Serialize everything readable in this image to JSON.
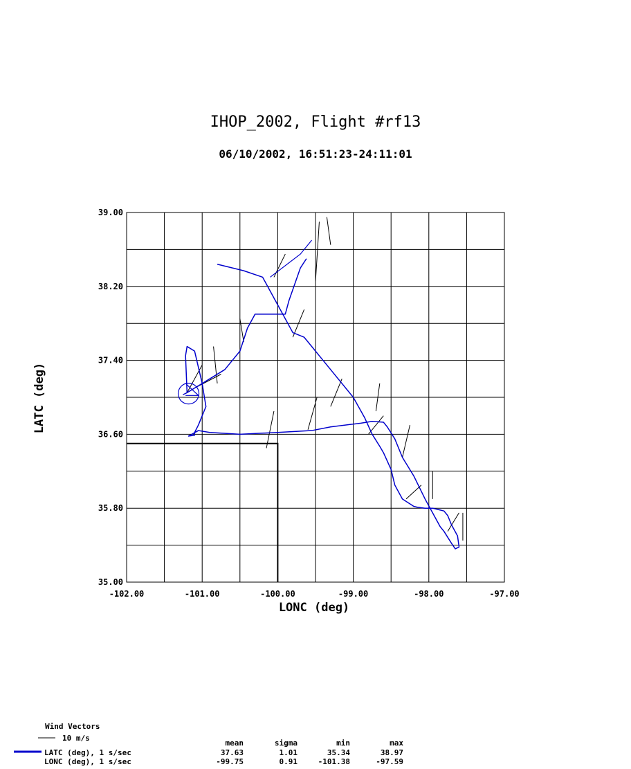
{
  "chart_data": {
    "type": "line",
    "title": "IHOP_2002, Flight #rf13",
    "subtitle": "06/10/2002, 16:51:23-24:11:01",
    "xlabel": "LONC (deg)",
    "ylabel": "LATC (deg)",
    "xlim": [
      -102.0,
      -97.0
    ],
    "ylim": [
      35.0,
      39.0
    ],
    "x_ticks": [
      "-102.00",
      "-101.00",
      "-100.00",
      "-99.00",
      "-98.00",
      "-97.00"
    ],
    "y_ticks": [
      "35.00",
      "35.80",
      "36.60",
      "37.40",
      "38.20",
      "39.00"
    ],
    "grid": true,
    "track_color": "#0000cc",
    "boundary_color": "#000000",
    "series": [
      {
        "name": "LATC (deg), 1 s/sec",
        "x": [
          -99.62,
          -99.7,
          -99.85,
          -99.9,
          -100.3,
          -100.4,
          -100.5,
          -100.7,
          -100.9,
          -101.0,
          -101.1,
          -101.2,
          -101.25,
          -101.2,
          -101.22,
          -101.2,
          -101.1,
          -101.0,
          -100.95,
          -101.0,
          -101.05,
          -101.1,
          -101.1,
          -101.18,
          -101.05,
          -100.9,
          -100.5,
          -100.0,
          -99.55,
          -99.3,
          -99.0,
          -98.9,
          -98.75,
          -98.6,
          -98.55,
          -98.45,
          -98.35,
          -98.2,
          -98.05,
          -97.95,
          -97.85,
          -97.8,
          -97.7,
          -97.65,
          -97.6,
          -97.62,
          -97.7,
          -97.75,
          -97.8,
          -97.95,
          -98.05,
          -98.15,
          -98.2,
          -98.35,
          -98.45,
          -98.5,
          -98.6,
          -98.65,
          -98.75,
          -98.85,
          -99.0,
          -99.2,
          -99.45,
          -99.65,
          -99.8,
          -100.0,
          -100.2,
          -100.45,
          -100.8
        ],
        "y": [
          38.5,
          38.4,
          38.05,
          37.9,
          37.9,
          37.75,
          37.5,
          37.3,
          37.2,
          37.15,
          37.1,
          37.05,
          37.03,
          37.05,
          37.45,
          37.55,
          37.5,
          37.15,
          36.9,
          36.8,
          36.7,
          36.62,
          36.59,
          36.58,
          36.64,
          36.62,
          36.6,
          36.62,
          36.64,
          36.68,
          36.71,
          36.72,
          36.74,
          36.73,
          36.68,
          36.55,
          36.35,
          36.15,
          35.9,
          35.75,
          35.6,
          35.55,
          35.42,
          35.36,
          35.38,
          35.5,
          35.62,
          35.72,
          35.77,
          35.8,
          35.8,
          35.81,
          35.82,
          35.9,
          36.05,
          36.22,
          36.4,
          36.47,
          36.6,
          36.78,
          37.0,
          37.2,
          37.45,
          37.65,
          37.7,
          38.0,
          38.3,
          38.37,
          38.44
        ]
      },
      {
        "name": "LONC (deg), 1 s/sec"
      }
    ],
    "legend": {
      "wind_title": "Wind Vectors",
      "wind_scale": "10 m/s",
      "headers": [
        "mean",
        "sigma",
        "min",
        "max"
      ],
      "rows": [
        {
          "label": "LATC (deg), 1 s/sec",
          "mean": "37.63",
          "sigma": "1.01",
          "min": "35.34",
          "max": "38.97"
        },
        {
          "label": "LONC (deg), 1 s/sec",
          "mean": "-99.75",
          "sigma": "0.91",
          "min": "-101.38",
          "max": "-97.59"
        }
      ]
    },
    "boundary": {
      "x": [
        -102.0,
        -100.0,
        -100.0
      ],
      "y": [
        36.5,
        36.5,
        35.0
      ]
    },
    "loops": [
      {
        "x": [
          -101.22,
          -101.05,
          -101.22
        ],
        "y": [
          37.02,
          37.02,
          37.15
        ]
      },
      {
        "x": [
          -100.1,
          -99.7,
          -99.55
        ],
        "y": [
          38.3,
          38.55,
          38.7
        ]
      }
    ],
    "wind_vectors": [
      {
        "x": -101.1,
        "y": 37.1,
        "dx": 0.35,
        "dy": 0.15
      },
      {
        "x": -100.85,
        "y": 37.55,
        "dx": 0.05,
        "dy": -0.4
      },
      {
        "x": -101.2,
        "y": 37.05,
        "dx": 0.2,
        "dy": 0.3
      },
      {
        "x": -100.45,
        "y": 37.6,
        "dx": -0.05,
        "dy": 0.25
      },
      {
        "x": -100.05,
        "y": 36.85,
        "dx": -0.1,
        "dy": -0.4
      },
      {
        "x": -99.6,
        "y": 36.65,
        "dx": 0.12,
        "dy": 0.35
      },
      {
        "x": -99.3,
        "y": 36.9,
        "dx": 0.15,
        "dy": 0.3
      },
      {
        "x": -98.8,
        "y": 36.6,
        "dx": 0.2,
        "dy": 0.2
      },
      {
        "x": -98.7,
        "y": 36.85,
        "dx": 0.05,
        "dy": 0.3
      },
      {
        "x": -98.35,
        "y": 36.35,
        "dx": 0.1,
        "dy": 0.35
      },
      {
        "x": -98.3,
        "y": 35.9,
        "dx": 0.2,
        "dy": 0.15
      },
      {
        "x": -97.95,
        "y": 35.9,
        "dx": 0.0,
        "dy": 0.3
      },
      {
        "x": -97.75,
        "y": 35.55,
        "dx": 0.15,
        "dy": 0.2
      },
      {
        "x": -97.55,
        "y": 35.45,
        "dx": 0.0,
        "dy": 0.3
      },
      {
        "x": -99.5,
        "y": 38.25,
        "dx": 0.05,
        "dy": 0.65
      },
      {
        "x": -99.3,
        "y": 38.65,
        "dx": -0.05,
        "dy": 0.3
      },
      {
        "x": -99.8,
        "y": 37.65,
        "dx": 0.15,
        "dy": 0.3
      },
      {
        "x": -100.05,
        "y": 38.3,
        "dx": 0.15,
        "dy": 0.25
      }
    ]
  }
}
